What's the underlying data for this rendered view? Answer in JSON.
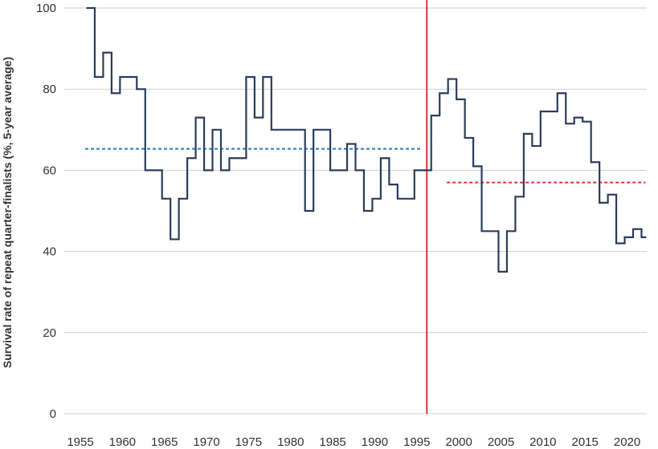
{
  "chart_data": {
    "type": "line",
    "step": true,
    "title": "",
    "xlabel": "",
    "ylabel": "Survival rate of repeat quarter-finalists (%, 5-year average)",
    "xlim": [
      1955,
      2023
    ],
    "ylim": [
      0,
      100
    ],
    "x_ticks": [
      1955,
      1960,
      1965,
      1970,
      1975,
      1980,
      1985,
      1990,
      1995,
      2000,
      2005,
      2010,
      2015,
      2020
    ],
    "y_ticks": [
      0,
      20,
      40,
      60,
      80,
      100
    ],
    "grid": "horizontal",
    "legend": "none",
    "colors": {
      "series": "#2b3d5c",
      "avg_before": "#2b7bb5",
      "avg_after": "#e03333",
      "marker_line": "#d93333",
      "grid": "#cfcfcf"
    },
    "series": [
      {
        "x": [
          1956,
          1957,
          1958,
          1959,
          1960,
          1961,
          1962,
          1963,
          1964,
          1965,
          1966,
          1967,
          1968,
          1969,
          1970,
          1971,
          1972,
          1973,
          1974,
          1975,
          1976,
          1977,
          1978,
          1979,
          1980,
          1981,
          1982,
          1983,
          1984,
          1985,
          1986,
          1987,
          1988,
          1989,
          1990,
          1991,
          1992,
          1993,
          1994,
          1995,
          1996,
          1997,
          1998,
          1999,
          2000,
          2001,
          2002,
          2003,
          2004,
          2005,
          2006,
          2007,
          2008,
          2009,
          2010,
          2011,
          2012,
          2013,
          2014,
          2015,
          2016,
          2017,
          2018,
          2019,
          2020,
          2021,
          2022
        ],
        "y": [
          100,
          83,
          89,
          79,
          83,
          83,
          80,
          60,
          60,
          53,
          43,
          53,
          63,
          73,
          60,
          70,
          60,
          63,
          63,
          83,
          73,
          83,
          70,
          70,
          70,
          70,
          50,
          70,
          70,
          60,
          60,
          66.5,
          60,
          50,
          53,
          63,
          56.5,
          53,
          53,
          60,
          60,
          73.5,
          79,
          82.5,
          77.5,
          68,
          61,
          45,
          45,
          35,
          45,
          53.5,
          69,
          66,
          74.5,
          74.5,
          79,
          71.5,
          73,
          72,
          62,
          52,
          54,
          42,
          43.5,
          45.5,
          43.5
        ]
      }
    ],
    "reference_lines": [
      {
        "orientation": "horizontal",
        "style": "dashed",
        "y": 65.3,
        "x_from": 1955,
        "x_to": 1995.5,
        "color": "#2b7bb5"
      },
      {
        "orientation": "horizontal",
        "style": "dashed",
        "y": 57,
        "x_from": 1998,
        "x_to": 2022,
        "color": "#e03333"
      },
      {
        "orientation": "vertical",
        "style": "solid",
        "x": 1996,
        "color": "#d93333"
      }
    ]
  }
}
